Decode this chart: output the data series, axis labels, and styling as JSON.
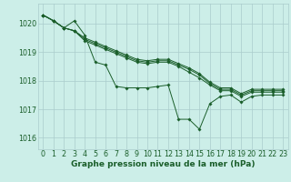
{
  "bg_color": "#cceee8",
  "grid_color": "#aacccc",
  "line_color": "#1a5e2a",
  "xlabel": "Graphe pression niveau de la mer (hPa)",
  "xlabel_fontsize": 6.5,
  "tick_fontsize": 5.8,
  "ylim": [
    1015.6,
    1020.7
  ],
  "xlim": [
    -0.5,
    23.5
  ],
  "yticks": [
    1016,
    1017,
    1018,
    1019,
    1020
  ],
  "xticks": [
    0,
    1,
    2,
    3,
    4,
    5,
    6,
    7,
    8,
    9,
    10,
    11,
    12,
    13,
    14,
    15,
    16,
    17,
    18,
    19,
    20,
    21,
    22,
    23
  ],
  "series": [
    [
      1020.3,
      1020.1,
      1019.85,
      1020.1,
      1019.6,
      1018.65,
      1018.55,
      1017.8,
      1017.75,
      1017.75,
      1017.75,
      1017.8,
      1017.85,
      1016.65,
      1016.65,
      1016.3,
      1017.2,
      1017.45,
      1017.5,
      1017.25,
      1017.45,
      1017.5,
      1017.5,
      1017.5
    ],
    [
      1020.3,
      1020.1,
      1019.85,
      1019.75,
      1019.4,
      1019.25,
      1019.1,
      1018.95,
      1018.8,
      1018.65,
      1018.6,
      1018.65,
      1018.65,
      1018.5,
      1018.3,
      1018.1,
      1017.85,
      1017.65,
      1017.65,
      1017.45,
      1017.6,
      1017.6,
      1017.6,
      1017.6
    ],
    [
      1020.3,
      1020.1,
      1019.85,
      1019.75,
      1019.45,
      1019.3,
      1019.15,
      1019.0,
      1018.85,
      1018.7,
      1018.65,
      1018.7,
      1018.7,
      1018.55,
      1018.4,
      1018.2,
      1017.9,
      1017.7,
      1017.7,
      1017.5,
      1017.65,
      1017.65,
      1017.65,
      1017.65
    ],
    [
      1020.3,
      1020.1,
      1019.85,
      1019.75,
      1019.5,
      1019.35,
      1019.2,
      1019.05,
      1018.9,
      1018.75,
      1018.7,
      1018.75,
      1018.75,
      1018.6,
      1018.45,
      1018.25,
      1017.95,
      1017.75,
      1017.75,
      1017.55,
      1017.7,
      1017.7,
      1017.7,
      1017.7
    ]
  ],
  "marker": "D",
  "markersize": 1.8,
  "linewidth": 0.7
}
